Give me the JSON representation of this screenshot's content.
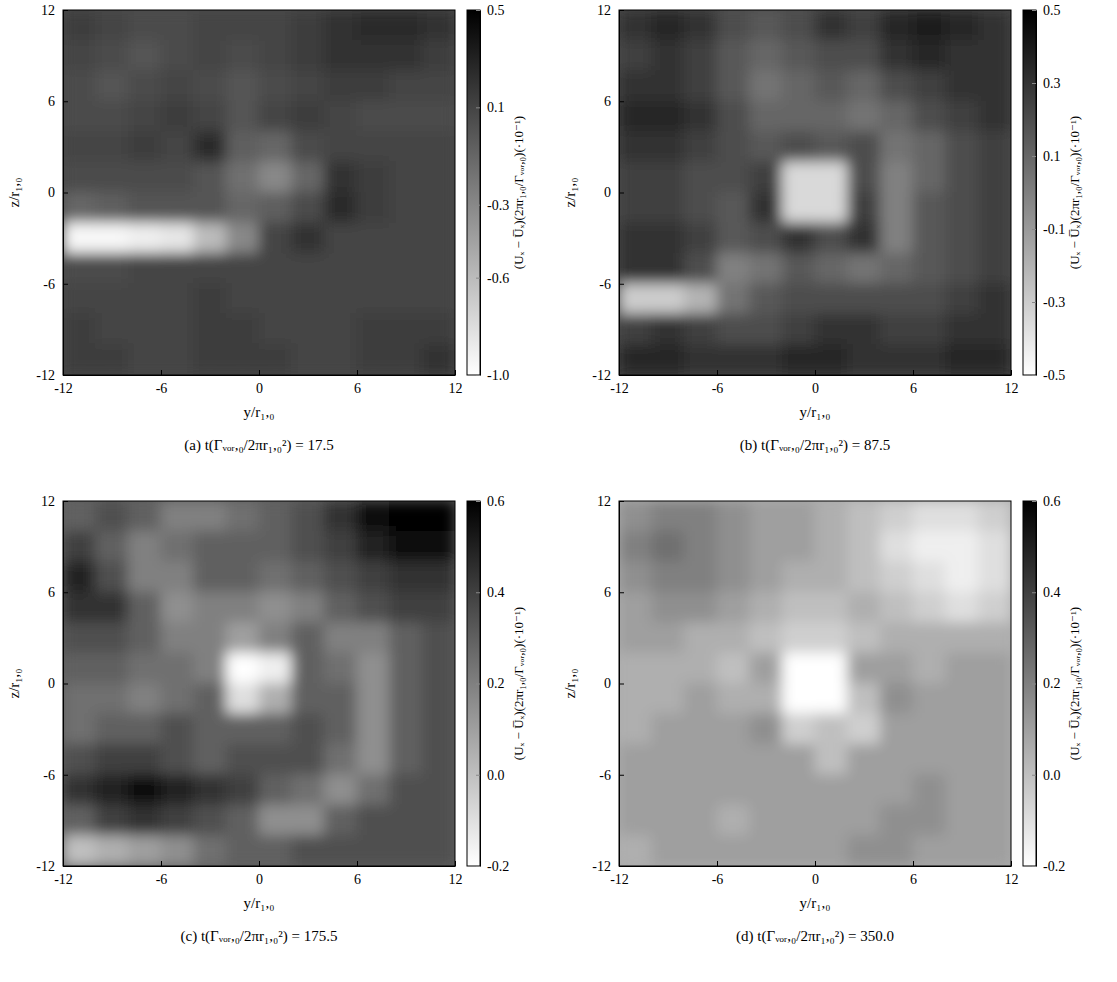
{
  "chart_data": [
    {
      "type": "heatmap",
      "title": "(a) t(Γᵥₒᵣ,₀/2πr₁,₀²) = 17.5",
      "x_label": "y/r₁,₀",
      "y_label": "z/r₁,₀",
      "xlim": [
        -12,
        12
      ],
      "ylim": [
        -12,
        12
      ],
      "xticks": [
        -12,
        -6,
        0,
        6,
        12
      ],
      "yticks": [
        -12,
        -6,
        0,
        6,
        12
      ],
      "x": [
        -11,
        -9,
        -7,
        -5,
        -3,
        -1,
        1,
        3,
        5,
        7,
        9,
        11
      ],
      "y": [
        11,
        9,
        7,
        5,
        3,
        1,
        -1,
        -3,
        -5,
        -7,
        -9,
        -11
      ],
      "values": [
        [
          0.15,
          0.1,
          0.05,
          0.05,
          0.1,
          0.1,
          0.1,
          0.15,
          0.2,
          0.25,
          0.25,
          0.2
        ],
        [
          0.1,
          0.05,
          0.0,
          0.05,
          0.1,
          0.05,
          0.1,
          0.15,
          0.2,
          0.2,
          0.2,
          0.15
        ],
        [
          0.05,
          0.0,
          0.05,
          0.1,
          0.05,
          0.0,
          0.05,
          0.1,
          0.15,
          0.15,
          0.1,
          0.1
        ],
        [
          0.05,
          0.05,
          0.1,
          0.15,
          0.1,
          0.0,
          0.1,
          0.15,
          0.1,
          0.05,
          0.05,
          0.05
        ],
        [
          0.1,
          0.1,
          0.15,
          0.1,
          0.25,
          -0.05,
          -0.1,
          0.05,
          0.1,
          0.1,
          0.1,
          0.1
        ],
        [
          0.05,
          0.05,
          0.05,
          0.05,
          0.0,
          -0.15,
          -0.3,
          -0.1,
          0.2,
          0.15,
          0.1,
          0.1
        ],
        [
          -0.1,
          -0.05,
          0.0,
          0.0,
          0.0,
          -0.1,
          -0.05,
          0.05,
          0.25,
          0.15,
          0.1,
          0.1
        ],
        [
          -0.95,
          -0.95,
          -0.9,
          -0.85,
          -0.6,
          -0.3,
          0.1,
          0.2,
          0.1,
          0.1,
          0.1,
          0.1
        ],
        [
          0.05,
          0.05,
          0.1,
          0.1,
          0.1,
          0.1,
          0.1,
          0.1,
          0.1,
          0.1,
          0.1,
          0.1
        ],
        [
          0.1,
          0.1,
          0.1,
          0.1,
          0.15,
          0.1,
          0.1,
          0.1,
          0.1,
          0.1,
          0.1,
          0.1
        ],
        [
          0.15,
          0.1,
          0.1,
          0.1,
          0.15,
          0.15,
          0.1,
          0.1,
          0.1,
          0.15,
          0.15,
          0.15
        ],
        [
          0.15,
          0.15,
          0.1,
          0.1,
          0.15,
          0.15,
          0.15,
          0.1,
          0.1,
          0.15,
          0.15,
          0.2
        ]
      ],
      "colorbar": {
        "label": "(Uₓ − U̅ₓ)(2πr₁,₀/Γᵥₒᵣ,₀)(·10⁻¹)",
        "range": [
          -1,
          0.5
        ],
        "ticks": [
          {
            "value": -1,
            "label": "-1.0"
          },
          -0.6,
          -0.3,
          0.1,
          0.5
        ]
      }
    },
    {
      "type": "heatmap",
      "title": "(b) t(Γᵥₒᵣ,₀/2πr₁,₀²) = 87.5",
      "x_label": "y/r₁,₀",
      "y_label": "z/r₁,₀",
      "xlim": [
        -12,
        12
      ],
      "ylim": [
        -12,
        12
      ],
      "xticks": [
        -12,
        -6,
        0,
        6,
        12
      ],
      "yticks": [
        -12,
        -6,
        0,
        6,
        12
      ],
      "x": [
        -11,
        -9,
        -7,
        -5,
        -3,
        -1,
        1,
        3,
        5,
        7,
        9,
        11
      ],
      "y": [
        11,
        9,
        7,
        5,
        3,
        1,
        -1,
        -3,
        -5,
        -7,
        -9,
        -11
      ],
      "values": [
        [
          0.3,
          0.35,
          0.3,
          0.2,
          0.15,
          0.2,
          0.3,
          0.25,
          0.35,
          0.4,
          0.35,
          0.3
        ],
        [
          0.25,
          0.3,
          0.25,
          0.15,
          0.1,
          0.15,
          0.2,
          0.2,
          0.3,
          0.35,
          0.3,
          0.3
        ],
        [
          0.3,
          0.3,
          0.25,
          0.15,
          0.05,
          0.1,
          0.15,
          0.1,
          0.2,
          0.25,
          0.3,
          0.3
        ],
        [
          0.35,
          0.35,
          0.3,
          0.2,
          0.1,
          0.1,
          0.1,
          0.05,
          0.1,
          0.2,
          0.25,
          0.3
        ],
        [
          0.3,
          0.3,
          0.25,
          0.2,
          0.15,
          0.2,
          0.15,
          0.2,
          0.05,
          0.1,
          0.2,
          0.25
        ],
        [
          0.25,
          0.25,
          0.2,
          0.2,
          0.25,
          -0.35,
          -0.35,
          0.2,
          0.0,
          0.1,
          0.2,
          0.25
        ],
        [
          0.25,
          0.25,
          0.2,
          0.15,
          0.3,
          -0.35,
          -0.35,
          0.25,
          0.0,
          0.15,
          0.2,
          0.25
        ],
        [
          0.3,
          0.3,
          0.25,
          0.15,
          0.2,
          0.3,
          0.2,
          0.3,
          0.0,
          0.15,
          0.2,
          0.25
        ],
        [
          0.3,
          0.3,
          0.2,
          0.0,
          0.05,
          0.15,
          0.1,
          0.05,
          0.1,
          0.15,
          0.2,
          0.25
        ],
        [
          -0.3,
          -0.3,
          -0.2,
          0.05,
          0.15,
          0.2,
          0.2,
          0.2,
          0.2,
          0.2,
          0.25,
          0.3
        ],
        [
          0.25,
          0.3,
          0.25,
          0.2,
          0.2,
          0.25,
          0.3,
          0.3,
          0.25,
          0.25,
          0.3,
          0.3
        ],
        [
          0.35,
          0.35,
          0.3,
          0.3,
          0.3,
          0.35,
          0.35,
          0.3,
          0.3,
          0.3,
          0.35,
          0.35
        ]
      ],
      "colorbar": {
        "label": "(Uₓ − U̅ₓ)(2πr₁,₀/Γᵥₒᵣ,₀)(·10⁻¹)",
        "range": [
          -0.5,
          0.5
        ],
        "ticks": [
          -0.5,
          -0.3,
          -0.1,
          0.1,
          0.3,
          0.5
        ]
      }
    },
    {
      "type": "heatmap",
      "title": "(c) t(Γᵥₒᵣ,₀/2πr₁,₀²) = 175.5",
      "x_label": "y/r₁,₀",
      "y_label": "z/r₁,₀",
      "xlim": [
        -12,
        12
      ],
      "ylim": [
        -12,
        12
      ],
      "xticks": [
        -12,
        -6,
        0,
        6,
        12
      ],
      "yticks": [
        -12,
        -6,
        0,
        6,
        12
      ],
      "x": [
        -11,
        -9,
        -7,
        -5,
        -3,
        -1,
        1,
        3,
        5,
        7,
        9,
        11
      ],
      "y": [
        11,
        9,
        7,
        5,
        3,
        1,
        -1,
        -3,
        -5,
        -7,
        -9,
        -11
      ],
      "values": [
        [
          0.3,
          0.35,
          0.3,
          0.2,
          0.2,
          0.25,
          0.3,
          0.35,
          0.45,
          0.55,
          0.6,
          0.6
        ],
        [
          0.4,
          0.3,
          0.2,
          0.25,
          0.3,
          0.3,
          0.3,
          0.35,
          0.4,
          0.5,
          0.55,
          0.55
        ],
        [
          0.5,
          0.35,
          0.2,
          0.2,
          0.3,
          0.3,
          0.25,
          0.3,
          0.35,
          0.4,
          0.45,
          0.45
        ],
        [
          0.45,
          0.45,
          0.3,
          0.15,
          0.2,
          0.2,
          0.15,
          0.2,
          0.3,
          0.35,
          0.4,
          0.4
        ],
        [
          0.35,
          0.35,
          0.3,
          0.2,
          0.2,
          0.1,
          0.2,
          0.3,
          0.2,
          0.2,
          0.3,
          0.35
        ],
        [
          0.3,
          0.3,
          0.25,
          0.25,
          0.2,
          -0.2,
          -0.15,
          0.3,
          0.25,
          0.15,
          0.3,
          0.35
        ],
        [
          0.25,
          0.25,
          0.2,
          0.25,
          0.3,
          -0.1,
          0.05,
          0.3,
          0.3,
          0.15,
          0.3,
          0.35
        ],
        [
          0.25,
          0.3,
          0.3,
          0.35,
          0.3,
          0.3,
          0.3,
          0.35,
          0.3,
          0.15,
          0.3,
          0.35
        ],
        [
          0.35,
          0.4,
          0.4,
          0.35,
          0.3,
          0.35,
          0.35,
          0.35,
          0.25,
          0.15,
          0.3,
          0.35
        ],
        [
          0.45,
          0.5,
          0.55,
          0.5,
          0.45,
          0.4,
          0.3,
          0.25,
          0.15,
          0.25,
          0.35,
          0.35
        ],
        [
          0.3,
          0.4,
          0.45,
          0.4,
          0.35,
          0.3,
          0.15,
          0.15,
          0.3,
          0.35,
          0.35,
          0.35
        ],
        [
          0.0,
          0.05,
          0.1,
          0.15,
          0.25,
          0.3,
          0.3,
          0.35,
          0.35,
          0.35,
          0.35,
          0.35
        ]
      ],
      "colorbar": {
        "label": "(Uₓ − U̅ₓ)(2πr₁,₀/Γᵥₒᵣ,₀)(·10⁻¹)",
        "range": [
          -0.2,
          0.6
        ],
        "ticks": [
          -0.2,
          {
            "value": 0,
            "label": "0.0"
          },
          0.2,
          0.4,
          0.6
        ]
      }
    },
    {
      "type": "heatmap",
      "title": "(d) t(Γᵥₒᵣ,₀/2πr₁,₀²) = 350.0",
      "x_label": "y/r₁,₀",
      "y_label": "z/r₁,₀",
      "xlim": [
        -12,
        12
      ],
      "ylim": [
        -12,
        12
      ],
      "xticks": [
        -12,
        -6,
        0,
        6,
        12
      ],
      "yticks": [
        -12,
        -6,
        0,
        6,
        12
      ],
      "x": [
        -11,
        -9,
        -7,
        -5,
        -3,
        -1,
        1,
        3,
        5,
        7,
        9,
        11
      ],
      "y": [
        11,
        9,
        7,
        5,
        3,
        1,
        -1,
        -3,
        -5,
        -7,
        -9,
        -11
      ],
      "values": [
        [
          0.15,
          0.2,
          0.2,
          0.15,
          0.1,
          0.1,
          0.05,
          0.0,
          -0.05,
          -0.1,
          -0.1,
          -0.05
        ],
        [
          0.2,
          0.25,
          0.2,
          0.15,
          0.1,
          0.1,
          0.05,
          0.0,
          -0.1,
          -0.15,
          -0.15,
          -0.1
        ],
        [
          0.15,
          0.2,
          0.2,
          0.15,
          0.1,
          0.05,
          0.05,
          0.0,
          -0.05,
          -0.1,
          -0.15,
          -0.1
        ],
        [
          0.1,
          0.15,
          0.15,
          0.1,
          0.05,
          0.0,
          0.0,
          0.05,
          0.0,
          -0.05,
          -0.1,
          -0.05
        ],
        [
          0.1,
          0.1,
          0.05,
          0.05,
          0.0,
          -0.05,
          -0.05,
          0.0,
          0.05,
          0.05,
          0.05,
          0.05
        ],
        [
          0.05,
          0.05,
          0.05,
          0.0,
          0.1,
          -0.2,
          -0.2,
          0.1,
          0.1,
          0.05,
          0.1,
          0.1
        ],
        [
          0.05,
          0.05,
          0.1,
          0.05,
          0.05,
          -0.2,
          -0.2,
          0.0,
          0.15,
          0.1,
          0.1,
          0.1
        ],
        [
          0.05,
          0.1,
          0.1,
          0.1,
          0.15,
          -0.05,
          0.0,
          -0.05,
          0.1,
          0.1,
          0.1,
          0.1
        ],
        [
          0.1,
          0.1,
          0.1,
          0.1,
          0.1,
          0.1,
          0.0,
          0.1,
          0.1,
          0.1,
          0.1,
          0.1
        ],
        [
          0.1,
          0.1,
          0.1,
          0.1,
          0.1,
          0.1,
          0.1,
          0.1,
          0.1,
          0.15,
          0.1,
          0.1
        ],
        [
          0.1,
          0.1,
          0.1,
          0.05,
          0.1,
          0.1,
          0.1,
          0.1,
          0.15,
          0.15,
          0.1,
          0.1
        ],
        [
          0.05,
          0.1,
          0.1,
          0.1,
          0.1,
          0.1,
          0.1,
          0.15,
          0.15,
          0.1,
          0.1,
          0.1
        ]
      ],
      "colorbar": {
        "label": "(Uₓ − U̅ₓ)(2πr₁,₀/Γᵥₒᵣ,₀)(·10⁻¹)",
        "range": [
          -0.2,
          0.6
        ],
        "ticks": [
          -0.2,
          {
            "value": 0,
            "label": "0.0"
          },
          0.2,
          0.4,
          0.6
        ]
      }
    }
  ]
}
